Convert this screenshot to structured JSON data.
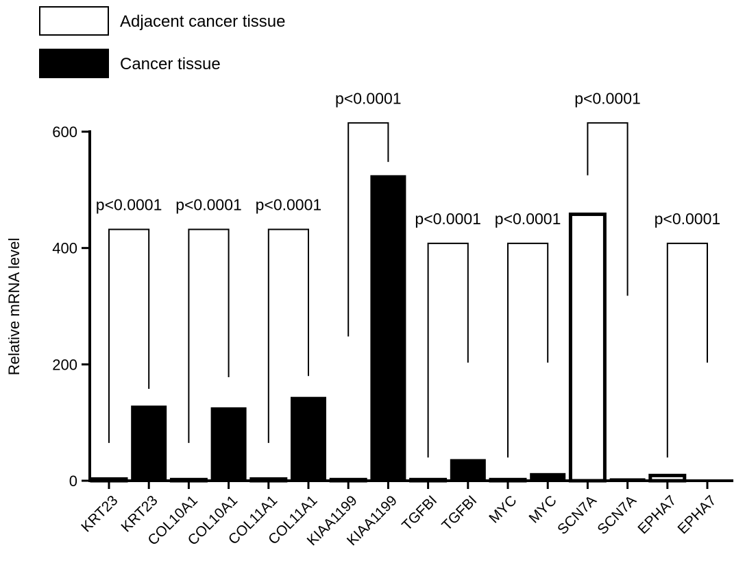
{
  "chart_data": {
    "type": "bar",
    "ylabel": "Relative mRNA level",
    "ylim": [
      0,
      600
    ],
    "yticks": [
      0,
      200,
      400,
      600
    ],
    "categories": [
      "KRT23",
      "KRT23",
      "COL10A1",
      "COL10A1",
      "COL11A1",
      "COL11A1",
      "KIAA1199",
      "KIAA1199",
      "TGFBI",
      "TGFBI",
      "MYC",
      "MYC",
      "SCN7A",
      "SCN7A",
      "EPHA7",
      "EPHA7"
    ],
    "series": [
      {
        "name": "Adjacent cancer tissue",
        "fill": "#ffffff"
      },
      {
        "name": "Cancer tissue",
        "fill": "#000000"
      }
    ],
    "bars": [
      {
        "label": "KRT23",
        "series": "Adjacent cancer tissue",
        "value": 3
      },
      {
        "label": "KRT23",
        "series": "Cancer tissue",
        "value": 128
      },
      {
        "label": "COL10A1",
        "series": "Adjacent cancer tissue",
        "value": 2
      },
      {
        "label": "COL10A1",
        "series": "Cancer tissue",
        "value": 125
      },
      {
        "label": "COL11A1",
        "series": "Adjacent cancer tissue",
        "value": 3
      },
      {
        "label": "COL11A1",
        "series": "Cancer tissue",
        "value": 143
      },
      {
        "label": "KIAA1199",
        "series": "Adjacent cancer tissue",
        "value": 2
      },
      {
        "label": "KIAA1199",
        "series": "Cancer tissue",
        "value": 524
      },
      {
        "label": "TGFBI",
        "series": "Adjacent cancer tissue",
        "value": 2
      },
      {
        "label": "TGFBI",
        "series": "Cancer tissue",
        "value": 36
      },
      {
        "label": "MYC",
        "series": "Adjacent cancer tissue",
        "value": 2
      },
      {
        "label": "MYC",
        "series": "Cancer tissue",
        "value": 12
      },
      {
        "label": "SCN7A",
        "series": "Adjacent cancer tissue",
        "value": 458
      },
      {
        "label": "SCN7A",
        "series": "Cancer tissue",
        "value": 3
      },
      {
        "label": "EPHA7",
        "series": "Adjacent cancer tissue",
        "value": 9
      },
      {
        "label": "EPHA7",
        "series": "Cancer tissue",
        "value": 1
      }
    ],
    "annotations": [
      {
        "text": "p<0.0001",
        "left_bar": 0,
        "right_bar": 1,
        "bracket_y": 432,
        "left_drop_y": 65,
        "right_drop_y": 158
      },
      {
        "text": "p<0.0001",
        "left_bar": 2,
        "right_bar": 3,
        "bracket_y": 432,
        "left_drop_y": 65,
        "right_drop_y": 178
      },
      {
        "text": "p<0.0001",
        "left_bar": 4,
        "right_bar": 5,
        "bracket_y": 432,
        "left_drop_y": 65,
        "right_drop_y": 180
      },
      {
        "text": "p<0.0001",
        "left_bar": 6,
        "right_bar": 7,
        "bracket_y": 615,
        "left_drop_y": 248,
        "right_drop_y": 548
      },
      {
        "text": "p<0.0001",
        "left_bar": 8,
        "right_bar": 9,
        "bracket_y": 408,
        "left_drop_y": 40,
        "right_drop_y": 203
      },
      {
        "text": "p<0.0001",
        "left_bar": 10,
        "right_bar": 11,
        "bracket_y": 408,
        "left_drop_y": 40,
        "right_drop_y": 203
      },
      {
        "text": "p<0.0001",
        "left_bar": 12,
        "right_bar": 13,
        "bracket_y": 615,
        "left_drop_y": 525,
        "right_drop_y": 318
      },
      {
        "text": "p<0.0001",
        "left_bar": 14,
        "right_bar": 15,
        "bracket_y": 408,
        "left_drop_y": 40,
        "right_drop_y": 203
      }
    ],
    "legend": {
      "placement": "top-left",
      "entries": [
        "Adjacent cancer tissue",
        "Cancer tissue"
      ]
    }
  }
}
